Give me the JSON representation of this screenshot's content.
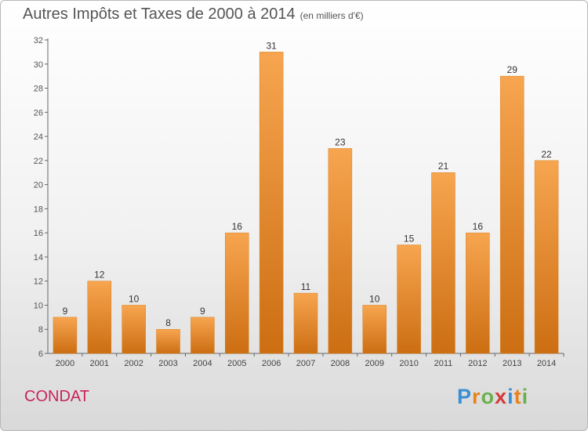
{
  "title": "Autres Impôts et Taxes de 2000 à 2014",
  "unit": "(en milliers d'€)",
  "commune": "CONDAT",
  "logo": {
    "letters": [
      "P",
      "r",
      "o",
      "x",
      "i",
      "t",
      "i"
    ],
    "colors": [
      "#3b8ed6",
      "#e8831a",
      "#6ab04c",
      "#d43a3a",
      "#3b8ed6",
      "#e8831a",
      "#6ab04c"
    ]
  },
  "chart_data": {
    "type": "bar",
    "categories": [
      "2000",
      "2001",
      "2002",
      "2003",
      "2004",
      "2005",
      "2006",
      "2007",
      "2008",
      "2009",
      "2010",
      "2011",
      "2012",
      "2013",
      "2014"
    ],
    "values": [
      9,
      12,
      10,
      8,
      9,
      16,
      31,
      11,
      23,
      10,
      15,
      21,
      16,
      29,
      22
    ],
    "ylim": [
      6,
      32
    ],
    "yticks": [
      6,
      8,
      10,
      12,
      14,
      16,
      18,
      20,
      22,
      24,
      26,
      28,
      30,
      32
    ],
    "grid": false,
    "bar_color": "#f0922e",
    "data_labels": true
  }
}
